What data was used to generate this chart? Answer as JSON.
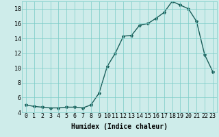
{
  "x": [
    0,
    1,
    2,
    3,
    4,
    5,
    6,
    7,
    8,
    9,
    10,
    11,
    12,
    13,
    14,
    15,
    16,
    17,
    18,
    19,
    20,
    21,
    22,
    23
  ],
  "y": [
    5.0,
    4.8,
    4.7,
    4.6,
    4.6,
    4.7,
    4.7,
    4.6,
    5.0,
    6.6,
    10.2,
    12.0,
    14.3,
    14.4,
    15.8,
    16.0,
    16.7,
    17.5,
    19.0,
    18.5,
    18.0,
    16.3,
    11.8,
    9.5
  ],
  "line_color": "#1a5f5a",
  "marker": "*",
  "marker_size": 3,
  "bg_color": "#ceecea",
  "grid_color": "#7acbc7",
  "xlabel": "Humidex (Indice chaleur)",
  "ylim": [
    4,
    19
  ],
  "xlim": [
    -0.5,
    23.5
  ],
  "yticks": [
    4,
    6,
    8,
    10,
    12,
    14,
    16,
    18
  ],
  "xticks": [
    0,
    1,
    2,
    3,
    4,
    5,
    6,
    7,
    8,
    9,
    10,
    11,
    12,
    13,
    14,
    15,
    16,
    17,
    18,
    19,
    20,
    21,
    22,
    23
  ],
  "xlabel_fontsize": 7,
  "tick_fontsize": 6,
  "linewidth": 1.0
}
